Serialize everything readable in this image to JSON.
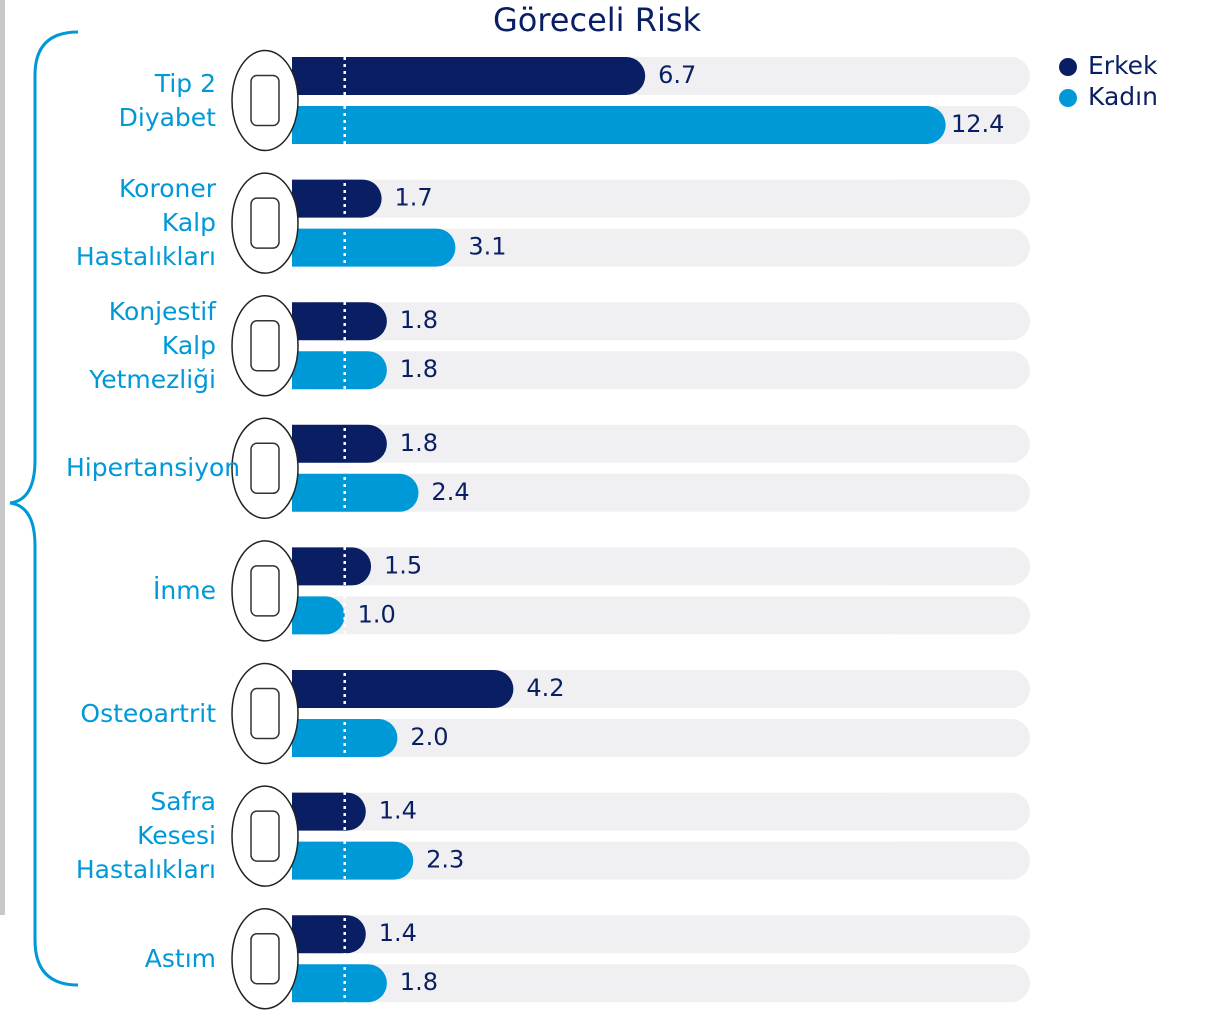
{
  "chart_data": {
    "type": "bar",
    "orientation": "horizontal",
    "title": "Göreceli Risk",
    "categories": [
      "Tip 2 Diyabet",
      "Koroner Kalp Hastalıkları",
      "Konjestif Kalp Yetmezliği",
      "Hipertansiyon",
      "İnme",
      "Osteoartrit",
      "Safra Kesesi Hastalıkları",
      "Astım"
    ],
    "series": [
      {
        "name": "Erkek",
        "color": "#0a1f63",
        "values": [
          6.7,
          1.7,
          1.8,
          1.8,
          1.5,
          4.2,
          1.4,
          1.4
        ],
        "value_labels": [
          "6.7",
          "1.7",
          "1.8",
          "1.8",
          "1.5",
          "4.2",
          "1.4",
          "1.4"
        ]
      },
      {
        "name": "Kadın",
        "color": "#0099d8",
        "values": [
          12.4,
          3.1,
          1.8,
          2.4,
          1.0,
          2.0,
          2.3,
          1.8
        ],
        "value_labels": [
          "12.4",
          "3.1",
          "1.8",
          "2.4",
          "1.0",
          "2.0",
          "2.3",
          "1.8"
        ]
      }
    ],
    "xlim": [
      0,
      14
    ],
    "reference_line": 1,
    "legend": "top-right"
  }
}
